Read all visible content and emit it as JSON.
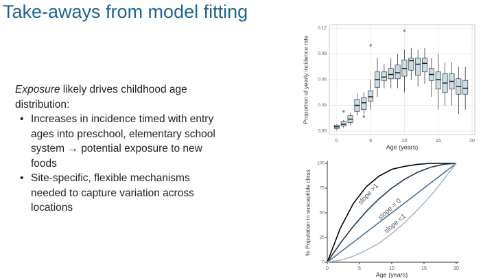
{
  "slide": {
    "title": "Take-aways from model fitting",
    "intro_italic": "Exposure",
    "intro_rest": " likely drives childhood age distribution:",
    "bullets": [
      "Increases in incidence timed with entry ages into preschool, elementary school system → potential exposure to new foods",
      "Site-specific, flexible mechanisms needed to capture variation across locations"
    ]
  },
  "chart_data": [
    {
      "type": "box",
      "x_label": "Age (years)",
      "y_label": "Proportion of yearly incidence rate",
      "xlim": [
        -1.1,
        20.4
      ],
      "ylim": [
        -0.004,
        0.124
      ],
      "xticks": [
        0,
        5,
        10,
        15,
        20
      ],
      "yticks": [
        {
          "value": 0,
          "label": "0.00"
        },
        {
          "value": 0.03,
          "label": "0.03"
        },
        {
          "value": 0.06,
          "label": "0.06"
        },
        {
          "value": 0.09,
          "label": "0.09"
        },
        {
          "value": 0.12,
          "label": "0.12"
        }
      ],
      "grid": true,
      "color": "#c9dde6",
      "boxes": {
        "x": [
          0,
          1,
          2,
          3,
          4,
          5,
          6,
          7,
          8,
          9,
          10,
          11,
          12,
          13,
          14,
          15,
          16,
          17,
          18,
          19
        ],
        "whislo": [
          0.001,
          0.004,
          0.007,
          0.018,
          0.02,
          0.025,
          0.04,
          0.05,
          0.05,
          0.05,
          0.045,
          0.06,
          0.052,
          0.055,
          0.04,
          0.025,
          0.03,
          0.03,
          0.02,
          0.025
        ],
        "q1": [
          0.003,
          0.006,
          0.01,
          0.023,
          0.025,
          0.035,
          0.051,
          0.059,
          0.061,
          0.061,
          0.064,
          0.071,
          0.065,
          0.069,
          0.059,
          0.049,
          0.045,
          0.049,
          0.043,
          0.043
        ],
        "med": [
          0.005,
          0.008,
          0.014,
          0.03,
          0.033,
          0.04,
          0.06,
          0.063,
          0.066,
          0.068,
          0.073,
          0.082,
          0.078,
          0.079,
          0.066,
          0.06,
          0.056,
          0.058,
          0.052,
          0.05
        ],
        "q3": [
          0.007,
          0.011,
          0.018,
          0.037,
          0.039,
          0.047,
          0.069,
          0.069,
          0.073,
          0.077,
          0.083,
          0.085,
          0.085,
          0.085,
          0.073,
          0.069,
          0.067,
          0.067,
          0.061,
          0.059
        ],
        "whishi": [
          0.008,
          0.013,
          0.021,
          0.044,
          0.045,
          0.06,
          0.085,
          0.078,
          0.085,
          0.09,
          0.095,
          0.097,
          0.095,
          0.097,
          0.085,
          0.09,
          0.08,
          0.08,
          0.075,
          0.075
        ]
      },
      "outliers": {
        "x": [
          1,
          4,
          5,
          10
        ],
        "y": [
          0.023,
          0.017,
          0.1,
          0.117
        ]
      }
    },
    {
      "type": "line",
      "x_label": "Age (years)",
      "y_label": "% Population in susceptible class",
      "xlim": [
        0,
        20
      ],
      "ylim": [
        0,
        100
      ],
      "xticks": [
        0,
        5,
        10,
        15,
        20
      ],
      "yticks": [
        0,
        25,
        50,
        75,
        100
      ],
      "x": [
        0,
        2,
        4,
        6,
        8,
        10,
        12,
        14,
        16,
        18,
        20
      ],
      "series": [
        {
          "color": "#000000",
          "values": [
            0,
            34,
            59,
            76,
            87,
            94,
            97,
            99,
            100,
            100,
            100
          ]
        },
        {
          "color": "#1e3550",
          "values": [
            0,
            19,
            36,
            51,
            64,
            75,
            84,
            91,
            96,
            99,
            100
          ]
        },
        {
          "color": "#4a6f94",
          "values": [
            0,
            10,
            20,
            30,
            40,
            50,
            60,
            70,
            80,
            90,
            100
          ]
        },
        {
          "color": "#a8b8cc",
          "values": [
            0,
            2,
            6,
            12,
            19,
            29,
            40,
            53,
            67,
            83,
            100
          ]
        }
      ],
      "annotations": [
        "slope >1",
        "slope = 0",
        "slope <1"
      ]
    }
  ]
}
